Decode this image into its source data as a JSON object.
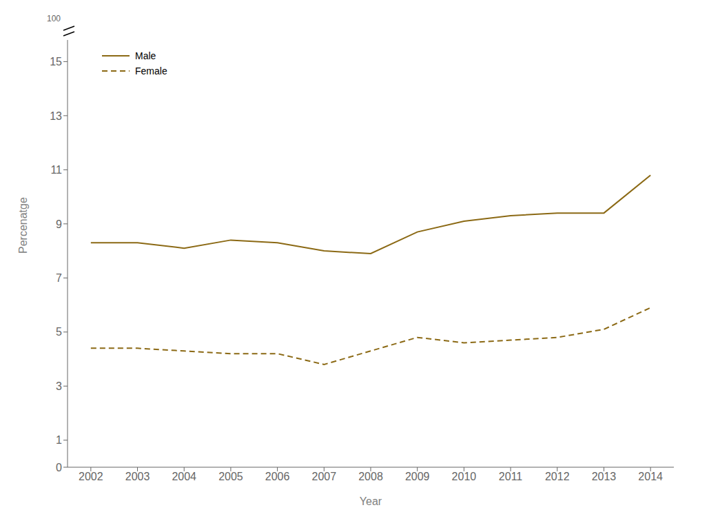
{
  "chart_data": {
    "type": "line",
    "x_label": "Year",
    "y_label": "Percenatge",
    "x": [
      2002,
      2003,
      2004,
      2005,
      2006,
      2007,
      2008,
      2009,
      2010,
      2011,
      2012,
      2013,
      2014
    ],
    "series": [
      {
        "name": "Male",
        "color": "#8B6914",
        "line_style": "solid",
        "values": [
          8.3,
          8.3,
          8.1,
          8.4,
          8.3,
          8.0,
          7.9,
          8.7,
          9.1,
          9.3,
          9.4,
          9.4,
          10.8
        ]
      },
      {
        "name": "Female",
        "color": "#8B6914",
        "line_style": "dashed",
        "values": [
          4.4,
          4.4,
          4.3,
          4.2,
          4.2,
          3.8,
          4.3,
          4.8,
          4.6,
          4.7,
          4.8,
          5.1,
          5.9
        ]
      }
    ],
    "xlim": [
      2001.5,
      2014.5
    ],
    "xticks": [
      2002,
      2003,
      2004,
      2005,
      2006,
      2007,
      2008,
      2009,
      2010,
      2011,
      2012,
      2013,
      2014
    ],
    "ylim": [
      0,
      15.8
    ],
    "yticks": [
      0,
      1,
      3,
      5,
      7,
      9,
      11,
      13,
      15
    ],
    "grid": false,
    "legend": "upper left",
    "annotations": [
      "100"
    ]
  }
}
